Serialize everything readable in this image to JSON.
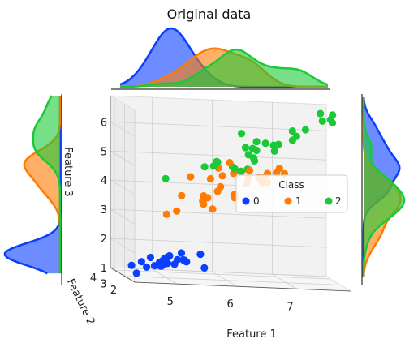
{
  "title": "Original data",
  "chart_data": {
    "type": "scatter",
    "subtype": "3d-scatter-with-marginal-kde",
    "title": "Original data",
    "xlabel": "Feature 1",
    "ylabel": "Feature 2",
    "zlabel": "Feature 3",
    "x_ticks": [
      "5",
      "6",
      "7"
    ],
    "y_ticks": [
      "2",
      "3",
      "4"
    ],
    "z_ticks": [
      "1",
      "2",
      "3",
      "4",
      "5",
      "6"
    ],
    "xlim": [
      4.3,
      7.9
    ],
    "ylim": [
      2.0,
      4.4
    ],
    "zlim": [
      1.0,
      6.9
    ],
    "grid": true,
    "legend": {
      "title": "Class",
      "placement": "center-right",
      "entries": [
        "0",
        "1",
        "2"
      ]
    },
    "series": [
      {
        "name": "0",
        "color": "#0a3fff",
        "x": [
          4.6,
          4.7,
          4.8,
          4.9,
          4.9,
          5.0,
          5.0,
          5.1,
          5.1,
          5.2,
          5.2,
          5.3,
          5.4,
          5.4,
          5.5,
          5.7,
          5.8,
          4.4,
          4.8,
          5.0,
          5.1,
          5.4,
          5.0,
          4.6,
          5.1
        ],
        "y": [
          3.1,
          3.2,
          3.0,
          3.0,
          3.1,
          3.4,
          3.5,
          3.5,
          3.8,
          3.4,
          4.1,
          3.7,
          3.9,
          3.4,
          4.2,
          3.8,
          4.0,
          2.9,
          3.4,
          3.3,
          3.3,
          3.7,
          3.0,
          3.6,
          3.5
        ],
        "z": [
          1.5,
          1.3,
          1.4,
          1.4,
          1.5,
          1.5,
          1.3,
          1.4,
          1.5,
          1.4,
          1.5,
          1.5,
          1.7,
          1.5,
          1.4,
          1.7,
          1.2,
          1.4,
          1.6,
          1.4,
          1.7,
          1.5,
          1.6,
          1.0,
          1.4
        ]
      },
      {
        "name": "1",
        "color": "#ff7c00",
        "x": [
          7.0,
          6.4,
          6.9,
          5.5,
          6.5,
          5.7,
          6.3,
          4.9,
          6.6,
          5.2,
          5.0,
          5.9,
          6.0,
          6.1,
          5.6,
          6.7,
          5.8,
          6.2,
          5.6,
          5.9,
          6.1,
          6.3,
          6.6,
          6.8,
          5.7,
          5.5,
          6.0,
          5.4,
          6.0,
          6.7
        ],
        "y": [
          3.2,
          3.2,
          3.1,
          2.3,
          2.8,
          2.8,
          3.3,
          2.4,
          2.9,
          2.7,
          2.0,
          3.0,
          2.2,
          2.9,
          2.9,
          3.1,
          2.7,
          2.2,
          2.5,
          3.2,
          2.8,
          2.5,
          3.0,
          2.8,
          2.6,
          2.4,
          2.7,
          3.0,
          3.4,
          3.1
        ],
        "z": [
          4.7,
          4.5,
          4.9,
          4.0,
          4.6,
          4.5,
          4.7,
          3.3,
          4.6,
          3.9,
          3.5,
          4.2,
          4.0,
          4.7,
          3.6,
          4.4,
          4.1,
          4.5,
          3.9,
          4.8,
          4.0,
          4.9,
          4.4,
          4.8,
          3.5,
          3.8,
          5.1,
          4.5,
          4.5,
          4.7
        ]
      },
      {
        "name": "2",
        "color": "#1ac938",
        "x": [
          6.3,
          5.8,
          7.1,
          6.3,
          6.5,
          7.6,
          4.9,
          7.3,
          6.7,
          7.2,
          6.5,
          6.4,
          6.8,
          5.7,
          5.8,
          6.4,
          6.5,
          7.7,
          7.7,
          6.0,
          6.9,
          5.6,
          7.7,
          6.3,
          6.7,
          7.2,
          6.2,
          6.1,
          6.4,
          7.9
        ],
        "y": [
          3.3,
          2.7,
          3.0,
          2.9,
          3.0,
          3.0,
          2.5,
          2.9,
          2.5,
          3.6,
          3.2,
          2.7,
          3.0,
          2.5,
          2.8,
          3.2,
          3.0,
          3.8,
          2.6,
          2.2,
          3.2,
          2.8,
          2.8,
          2.7,
          3.3,
          3.2,
          2.8,
          3.0,
          2.8,
          3.8
        ],
        "z": [
          6.0,
          5.1,
          5.9,
          5.6,
          5.8,
          6.6,
          4.5,
          6.3,
          5.8,
          6.1,
          5.1,
          5.3,
          5.5,
          5.0,
          5.1,
          5.3,
          5.5,
          6.7,
          6.9,
          5.0,
          5.7,
          4.9,
          6.7,
          4.9,
          5.7,
          6.0,
          4.8,
          4.9,
          5.6,
          6.4
        ]
      }
    ],
    "marginals": {
      "top": "Feature 1 density per class",
      "left": "Feature 3 density per class",
      "right": "Feature 2 density per class"
    }
  }
}
